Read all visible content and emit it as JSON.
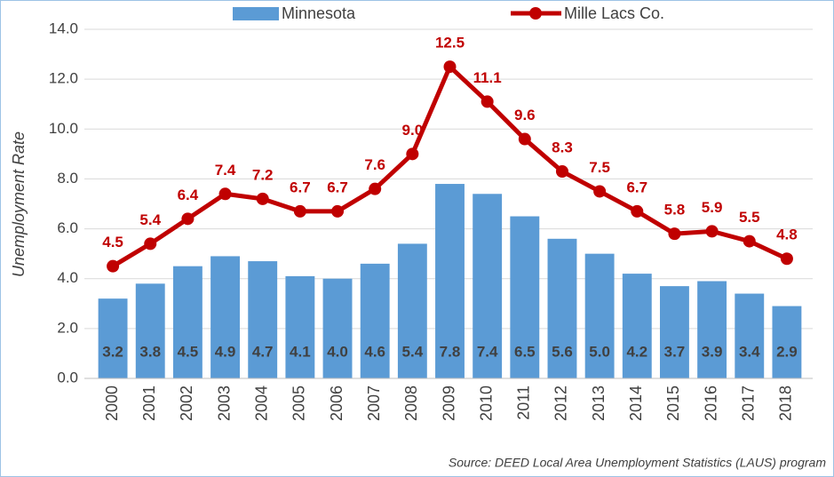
{
  "chart_data": {
    "type": "bar_line",
    "y_label": "Unemployment Rate",
    "source": "Source: DEED Local Area Unemployment Statistics (LAUS) program",
    "categories": [
      "2000",
      "2001",
      "2002",
      "2003",
      "2004",
      "2005",
      "2006",
      "2007",
      "2008",
      "2009",
      "2010",
      "2011",
      "2012",
      "2013",
      "2014",
      "2015",
      "2016",
      "2017",
      "2018"
    ],
    "series": [
      {
        "name": "Minnesota",
        "type": "bar",
        "color": "#5b9bd5",
        "values": [
          3.2,
          3.8,
          4.5,
          4.9,
          4.7,
          4.1,
          4.0,
          4.6,
          5.4,
          7.8,
          7.4,
          6.5,
          5.6,
          5.0,
          4.2,
          3.7,
          3.9,
          3.4,
          2.9
        ],
        "value_labels": [
          "3.2",
          "3.8",
          "4.5",
          "4.9",
          "4.7",
          "4.1",
          "4.0",
          "4.6",
          "5.4",
          "7.8",
          "7.4",
          "6.5",
          "5.6",
          "5.0",
          "4.2",
          "3.7",
          "3.9",
          "3.4",
          "2.9"
        ]
      },
      {
        "name": "Mille Lacs Co.",
        "type": "line",
        "color": "#c00000",
        "values": [
          4.5,
          5.4,
          6.4,
          7.4,
          7.2,
          6.7,
          6.7,
          7.6,
          9.0,
          12.5,
          11.1,
          9.6,
          8.3,
          7.5,
          6.7,
          5.8,
          5.9,
          5.5,
          4.8
        ],
        "value_labels": [
          "4.5",
          "5.4",
          "6.4",
          "7.4",
          "7.2",
          "6.7",
          "6.7",
          "7.6",
          "9.0",
          "12.5",
          "11.1",
          "9.6",
          "8.3",
          "7.5",
          "6.7",
          "5.8",
          "5.9",
          "5.5",
          "4.8"
        ]
      }
    ],
    "ylim": [
      0,
      14
    ],
    "yticks": [
      {
        "value": 0,
        "label": "0.0"
      },
      {
        "value": 2,
        "label": "2.0"
      },
      {
        "value": 4,
        "label": "4.0"
      },
      {
        "value": 6,
        "label": "6.0"
      },
      {
        "value": 8,
        "label": "8.0"
      },
      {
        "value": 10,
        "label": "10.0"
      },
      {
        "value": 12,
        "label": "12.0"
      },
      {
        "value": 14,
        "label": "14.0"
      }
    ],
    "grid": true,
    "legend": "top"
  }
}
